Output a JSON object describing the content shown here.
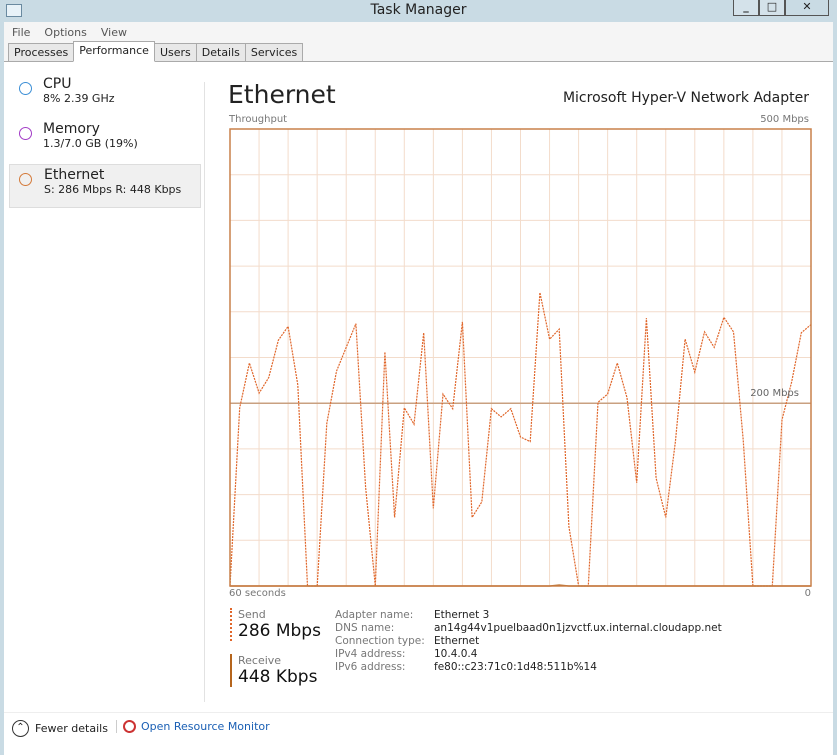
{
  "window": {
    "title": "Task Manager",
    "controls": [
      "_",
      "□",
      "✕"
    ]
  },
  "menu": [
    "File",
    "Options",
    "View"
  ],
  "tabs": [
    {
      "label": "Processes"
    },
    {
      "label": "Performance",
      "active": true
    },
    {
      "label": "Users"
    },
    {
      "label": "Details"
    },
    {
      "label": "Services"
    }
  ],
  "sidebar": [
    {
      "name": "CPU",
      "sub": "8%  2.39 GHz",
      "color": "#3c8fd6"
    },
    {
      "name": "Memory",
      "sub": "1.3/7.0 GB (19%)",
      "color": "#a23cc6"
    },
    {
      "name": "Ethernet",
      "sub": "S: 286 Mbps  R: 448 Kbps",
      "color": "#d47a3a",
      "selected": true
    }
  ],
  "main": {
    "title": "Ethernet",
    "adapter": "Microsoft Hyper-V Network Adapter",
    "throughput_label": "Throughput",
    "max_label": "500 Mbps",
    "mid_label": "200 Mbps",
    "time_label": "60 seconds",
    "zero_label": "0"
  },
  "chart_data": {
    "type": "line",
    "ylim": [
      0,
      500
    ],
    "x_range_seconds": 60,
    "grid": true,
    "colors": {
      "send": "#e0662a",
      "receive": "#b5651d",
      "border": "#c9804a"
    },
    "series": [
      {
        "key": "send",
        "style": "dashed",
        "values": [
          0,
          195,
          244,
          211,
          228,
          269,
          284,
          220,
          0,
          0,
          178,
          235,
          261,
          287,
          108,
          0,
          256,
          75,
          195,
          177,
          277,
          85,
          210,
          194,
          289,
          75,
          92,
          194,
          185,
          194,
          163,
          158,
          321,
          270,
          281,
          65,
          0,
          0,
          201,
          210,
          244,
          206,
          113,
          293,
          118,
          75,
          158,
          270,
          234,
          278,
          261,
          294,
          278,
          160,
          0,
          0,
          0,
          182,
          223,
          277,
          286
        ]
      },
      {
        "key": "receive",
        "style": "solid",
        "values": [
          0,
          0,
          0,
          0,
          0,
          0,
          0,
          0,
          0,
          0,
          0,
          0,
          0,
          0,
          0,
          0,
          0,
          0,
          0,
          0,
          0,
          0,
          0,
          0,
          0,
          0,
          0,
          0,
          0,
          0,
          0,
          0,
          0,
          0,
          1,
          0,
          0,
          0,
          0,
          0,
          0,
          0,
          0,
          0,
          0,
          0,
          0,
          0,
          0,
          0,
          0,
          0,
          0,
          0,
          0,
          0,
          0,
          0,
          0,
          0,
          0
        ]
      }
    ]
  },
  "stats": {
    "send_label": "Send",
    "send_value": "286 Mbps",
    "receive_label": "Receive",
    "receive_value": "448 Kbps"
  },
  "info": [
    {
      "k": "Adapter name:",
      "v": "Ethernet 3"
    },
    {
      "k": "DNS name:",
      "v": "an14g44v1puelbaad0n1jzvctf.ux.internal.cloudapp.net"
    },
    {
      "k": "Connection type:",
      "v": "Ethernet"
    },
    {
      "k": "IPv4 address:",
      "v": "10.4.0.4"
    },
    {
      "k": "IPv6 address:",
      "v": "fe80::c23:71c0:1d48:511b%14"
    }
  ],
  "footer": {
    "fewer": "Fewer details",
    "monitor": "Open Resource Monitor"
  }
}
